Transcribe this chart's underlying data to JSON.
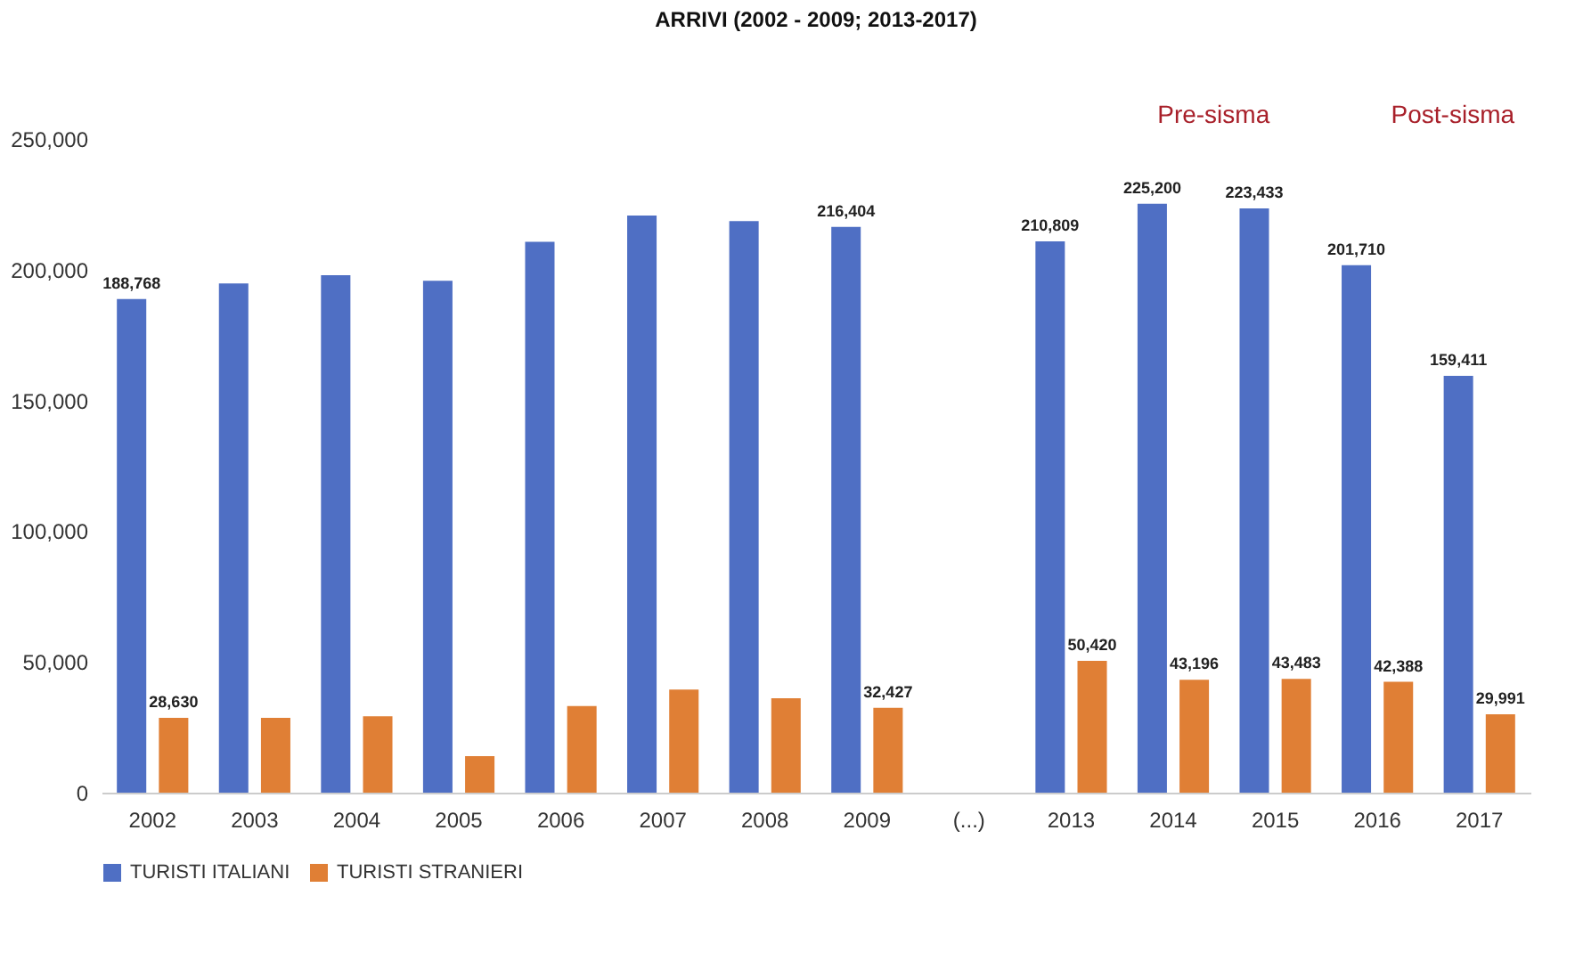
{
  "chart_data": {
    "type": "bar",
    "title": "ARRIVI (2002 - 2009; 2013-2017)",
    "categories": [
      "2002",
      "2003",
      "2004",
      "2005",
      "2006",
      "2007",
      "2008",
      "2009",
      "(...)",
      "2013",
      "2014",
      "2015",
      "2016",
      "2017"
    ],
    "series": [
      {
        "name": "TURISTI ITALIANI",
        "color": "#4f6fc4",
        "values": [
          188768,
          194700,
          197900,
          195800,
          210700,
          220700,
          218600,
          216404,
          null,
          210809,
          225200,
          223433,
          201710,
          159411
        ],
        "value_labels": [
          "188,768",
          null,
          null,
          null,
          null,
          null,
          null,
          "216,404",
          null,
          "210,809",
          "225,200",
          "223,433",
          "201,710",
          "159,411"
        ]
      },
      {
        "name": "TURISTI STRANIERI",
        "color": "#e07f35",
        "values": [
          28630,
          28600,
          29200,
          14000,
          33100,
          39400,
          36100,
          32427,
          null,
          50420,
          43196,
          43483,
          42388,
          29991
        ],
        "value_labels": [
          "28,630",
          null,
          null,
          null,
          null,
          null,
          null,
          "32,427",
          null,
          "50,420",
          "43,196",
          "43,483",
          "42,388",
          "29,991"
        ]
      }
    ],
    "ylim": [
      0,
      250000
    ],
    "yticks": [
      0,
      {
        "value": 50000,
        "label": "50,000"
      },
      {
        "value": 100000,
        "label": "100,000"
      },
      {
        "value": 150000,
        "label": "150,000"
      },
      {
        "value": 200000,
        "label": "200,000"
      },
      {
        "value": 250000,
        "label": "250,000"
      }
    ],
    "grid": false,
    "legend": "bottom",
    "annotations": [
      "Pre-sisma",
      "Post-sisma"
    ]
  }
}
